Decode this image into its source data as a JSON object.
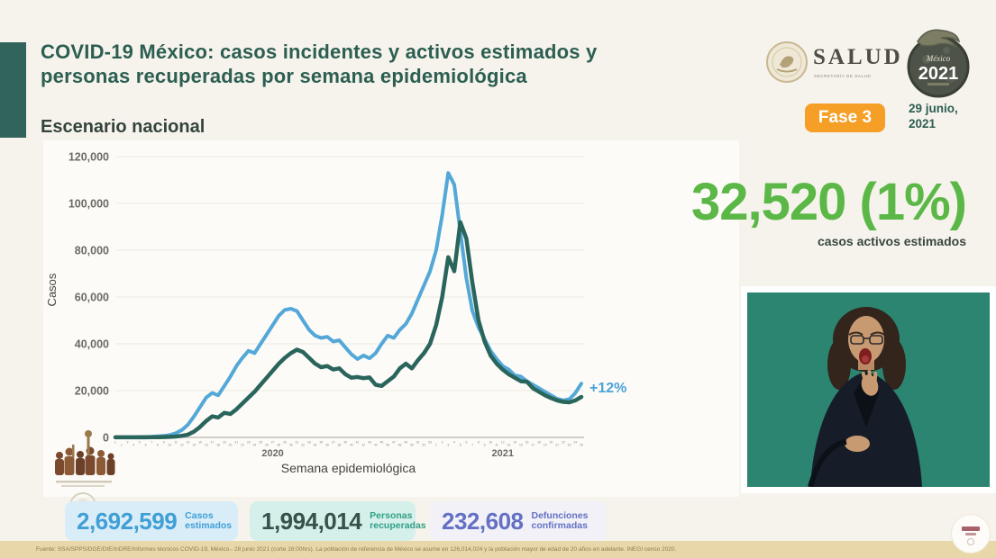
{
  "header": {
    "title_line1": "COVID-19 México: casos incidentes y activos estimados y",
    "title_line2": "personas recuperadas por semana epidemiológica",
    "section_title": "Escenario nacional",
    "salud_logo_text": "SALUD",
    "salud_logo_subtitle": "SECRETARÍA DE SALUD",
    "anniversary_logo_top": "México",
    "anniversary_logo_year": "2021",
    "phase_badge": "Fase 3",
    "date_line1": "29 junio,",
    "date_line2": "2021"
  },
  "highlight": {
    "value": "32,520 (1%)",
    "label": "casos activos estimados",
    "color": "#5bb847"
  },
  "chart_data": {
    "type": "line",
    "title": "Escenario nacional",
    "xlabel": "Semana epidemiológica",
    "ylabel": "Casos",
    "ylim": [
      0,
      120000
    ],
    "ytick_step": 20000,
    "yticks_top_down": [
      "120,000",
      "100,000",
      "80,000",
      "60,000",
      "40,000",
      "20,000",
      "0"
    ],
    "grid": true,
    "x_year_labels": [
      "2020",
      "2021"
    ],
    "weeks_2020": 53,
    "weeks_2021": 25,
    "annotation_end": "+12%",
    "annotation_color": "#4aa3d8",
    "series": [
      {
        "name": "Casos estimados (incidentes)",
        "color": "#54a8d8",
        "width": 4,
        "values": [
          100,
          100,
          150,
          150,
          200,
          250,
          300,
          450,
          650,
          1000,
          1800,
          3200,
          5500,
          9000,
          13000,
          17000,
          19000,
          18000,
          22000,
          26000,
          30500,
          34000,
          37000,
          36000,
          40000,
          44000,
          48000,
          52000,
          54500,
          55000,
          54000,
          50000,
          46000,
          43500,
          42500,
          43000,
          41000,
          41500,
          38500,
          35500,
          33500,
          35000,
          33800,
          36000,
          40000,
          43500,
          42500,
          46000,
          48500,
          53000,
          59000,
          65000,
          71000,
          80000,
          95000,
          113000,
          108000,
          88000,
          68000,
          54000,
          47000,
          42000,
          37000,
          33500,
          30500,
          29000,
          26500,
          26000,
          24000,
          22500,
          21000,
          19500,
          18000,
          16500,
          15800,
          16300,
          19000,
          23000
        ]
      },
      {
        "name": "Personas recuperadas",
        "color": "#2a655c",
        "width": 4.5,
        "values": [
          50,
          50,
          50,
          50,
          50,
          50,
          80,
          100,
          150,
          250,
          400,
          700,
          1200,
          2500,
          4500,
          7000,
          9000,
          8500,
          10500,
          10000,
          12000,
          14500,
          17000,
          19500,
          22500,
          25500,
          28500,
          31500,
          34000,
          36000,
          37500,
          36500,
          34000,
          31500,
          30000,
          30500,
          29000,
          29500,
          27000,
          25500,
          25800,
          25300,
          25600,
          22500,
          22000,
          24000,
          26000,
          29500,
          31500,
          29500,
          33000,
          36000,
          40000,
          48000,
          60000,
          77000,
          71000,
          92000,
          85000,
          66000,
          50000,
          41000,
          35000,
          31500,
          29000,
          27000,
          25500,
          24000,
          23800,
          21000,
          19500,
          18000,
          16800,
          15800,
          15200,
          15000,
          15800,
          17300
        ]
      }
    ]
  },
  "stats": [
    {
      "value": "2,692,599",
      "label_line1": "Casos",
      "label_line2": "estimados",
      "bg": "#d9edf8",
      "value_color": "#3f9fd6",
      "label_color": "#3f9fd6"
    },
    {
      "value": "1,994,014",
      "label_line1": "Personas",
      "label_line2": "recuperadas",
      "bg": "#d5f0ea",
      "value_color": "#35534a",
      "label_color": "#2f9f86"
    },
    {
      "value": "232,608",
      "label_line1": "Defunciones",
      "label_line2": "confirmadas",
      "bg": "#f1f1f7",
      "value_color": "#6470c4",
      "label_color": "#6470c4"
    }
  ],
  "footer": {
    "source": "Fuente: SSA/SPPS/DGE/DIE/InDRE/Informes técnicos COVID-19, México.- 28 junio 2021 (corte 16:00hrs). La población de referencia de México se asume en 126,014,024 y la población mayor de edad de 20 años en adelante. INEGI censo 2020."
  },
  "colors": {
    "accent_teal": "#31645a",
    "title_teal": "#2c5e52",
    "badge_orange": "#f59f27",
    "background": "#f6f3ec",
    "footer_tan": "#e8d8a9",
    "interpreter_green": "#2b8570"
  }
}
